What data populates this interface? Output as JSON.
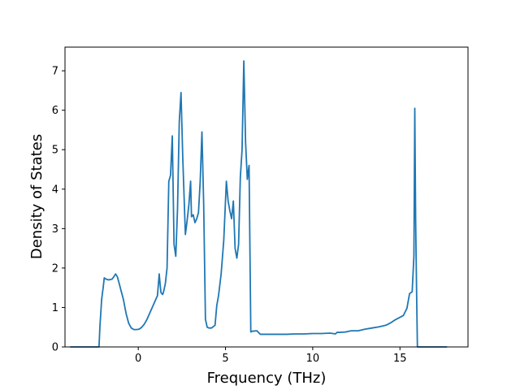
{
  "chart_data": {
    "type": "line",
    "xlabel": "Frequency (THz)",
    "ylabel": "Density of States",
    "xlim": [
      -4.2,
      18.9
    ],
    "ylim": [
      0,
      7.6
    ],
    "xticks": [
      0,
      5,
      10,
      15
    ],
    "yticks": [
      0,
      1,
      2,
      3,
      4,
      5,
      6,
      7
    ],
    "grid": false,
    "line_color": "#1f77b4",
    "series": [
      {
        "x": [
          -3.9,
          -3.2,
          -2.6,
          -2.25,
          -2.2,
          -2.1,
          -2.0,
          -1.95,
          -1.85,
          -1.7,
          -1.5,
          -1.4,
          -1.3,
          -1.2,
          -1.1,
          -1.0,
          -0.85,
          -0.7,
          -0.55,
          -0.4,
          -0.25,
          -0.1,
          0.05,
          0.2,
          0.35,
          0.5,
          0.65,
          0.8,
          0.95,
          1.1,
          1.2,
          1.25,
          1.3,
          1.35,
          1.4,
          1.45,
          1.55,
          1.65,
          1.75,
          1.85,
          1.95,
          2.05,
          2.15,
          2.25,
          2.35,
          2.45,
          2.55,
          2.7,
          2.8,
          2.9,
          3.0,
          3.05,
          3.15,
          3.25,
          3.35,
          3.45,
          3.55,
          3.65,
          3.75,
          3.85,
          3.95,
          4.05,
          4.2,
          4.4,
          4.5,
          4.6,
          4.75,
          4.9,
          5.05,
          5.15,
          5.25,
          5.35,
          5.45,
          5.55,
          5.65,
          5.75,
          5.85,
          5.95,
          6.05,
          6.15,
          6.25,
          6.35,
          6.45,
          6.55,
          6.6,
          6.8,
          7.0,
          7.2,
          7.5,
          8.0,
          8.5,
          9.0,
          9.5,
          10.0,
          10.5,
          11.0,
          11.3,
          11.4,
          11.6,
          11.9,
          12.2,
          12.6,
          13.0,
          13.4,
          13.8,
          14.2,
          14.5,
          14.7,
          15.0,
          15.2,
          15.4,
          15.55,
          15.7,
          15.8,
          15.85,
          15.9,
          15.95,
          16.0,
          16.05,
          16.5,
          17.0,
          17.7
        ],
        "y": [
          0,
          0,
          0,
          0,
          0.5,
          1.2,
          1.55,
          1.75,
          1.72,
          1.7,
          1.72,
          1.78,
          1.85,
          1.78,
          1.62,
          1.45,
          1.2,
          0.85,
          0.6,
          0.48,
          0.44,
          0.44,
          0.45,
          0.5,
          0.58,
          0.7,
          0.85,
          1.0,
          1.15,
          1.3,
          1.85,
          1.6,
          1.38,
          1.35,
          1.33,
          1.4,
          1.6,
          2.0,
          4.2,
          4.35,
          5.35,
          2.6,
          2.3,
          3.5,
          5.7,
          6.45,
          4.8,
          2.85,
          3.2,
          3.6,
          4.2,
          3.3,
          3.35,
          3.15,
          3.25,
          3.4,
          4.2,
          5.45,
          3.6,
          0.7,
          0.5,
          0.48,
          0.48,
          0.55,
          1.05,
          1.3,
          1.85,
          2.7,
          4.2,
          3.7,
          3.45,
          3.25,
          3.7,
          2.5,
          2.25,
          2.6,
          4.3,
          5.0,
          7.25,
          5.2,
          4.25,
          4.6,
          0.38,
          0.4,
          0.4,
          0.41,
          0.32,
          0.32,
          0.32,
          0.32,
          0.32,
          0.33,
          0.33,
          0.34,
          0.34,
          0.35,
          0.33,
          0.37,
          0.37,
          0.38,
          0.41,
          0.41,
          0.45,
          0.48,
          0.51,
          0.55,
          0.62,
          0.68,
          0.75,
          0.8,
          0.98,
          1.35,
          1.4,
          2.3,
          6.05,
          3.2,
          1.5,
          0,
          0,
          0,
          0,
          0
        ]
      }
    ]
  }
}
